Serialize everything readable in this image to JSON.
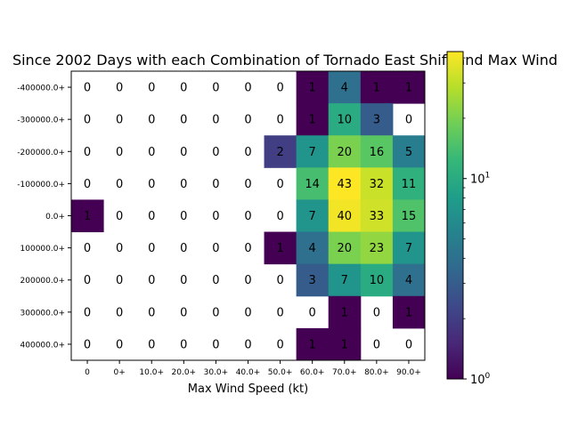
{
  "chart_data": {
    "type": "heatmap",
    "title": "Since 2002 Days with each Combination of Tornado East Shift and Max Wind",
    "xlabel": "Max Wind Speed (kt)",
    "ylabel": "",
    "x_categories": [
      "0",
      "0+",
      "10.0+",
      "20.0+",
      "30.0+",
      "40.0+",
      "50.0+",
      "60.0+",
      "70.0+",
      "80.0+",
      "90.0+"
    ],
    "y_categories": [
      "-400000.0+",
      "-300000.0+",
      "-200000.0+",
      "-100000.0+",
      "0.0+",
      "100000.0+",
      "200000.0+",
      "300000.0+",
      "400000.0+"
    ],
    "values": [
      [
        0,
        0,
        0,
        0,
        0,
        0,
        0,
        1,
        4,
        1,
        1
      ],
      [
        0,
        0,
        0,
        0,
        0,
        0,
        0,
        1,
        10,
        3,
        0
      ],
      [
        0,
        0,
        0,
        0,
        0,
        0,
        2,
        7,
        20,
        16,
        5
      ],
      [
        0,
        0,
        0,
        0,
        0,
        0,
        0,
        14,
        43,
        32,
        11
      ],
      [
        1,
        0,
        0,
        0,
        0,
        0,
        0,
        7,
        40,
        33,
        15
      ],
      [
        0,
        0,
        0,
        0,
        0,
        0,
        1,
        4,
        20,
        23,
        7
      ],
      [
        0,
        0,
        0,
        0,
        0,
        0,
        0,
        3,
        7,
        10,
        4
      ],
      [
        0,
        0,
        0,
        0,
        0,
        0,
        0,
        0,
        1,
        0,
        1
      ],
      [
        0,
        0,
        0,
        0,
        0,
        0,
        0,
        1,
        1,
        0,
        0
      ]
    ],
    "colorbar": {
      "scale": "log",
      "range": [
        1,
        43
      ],
      "colormap": "viridis",
      "tick_labels": [
        "10^0",
        "10^1"
      ]
    }
  }
}
